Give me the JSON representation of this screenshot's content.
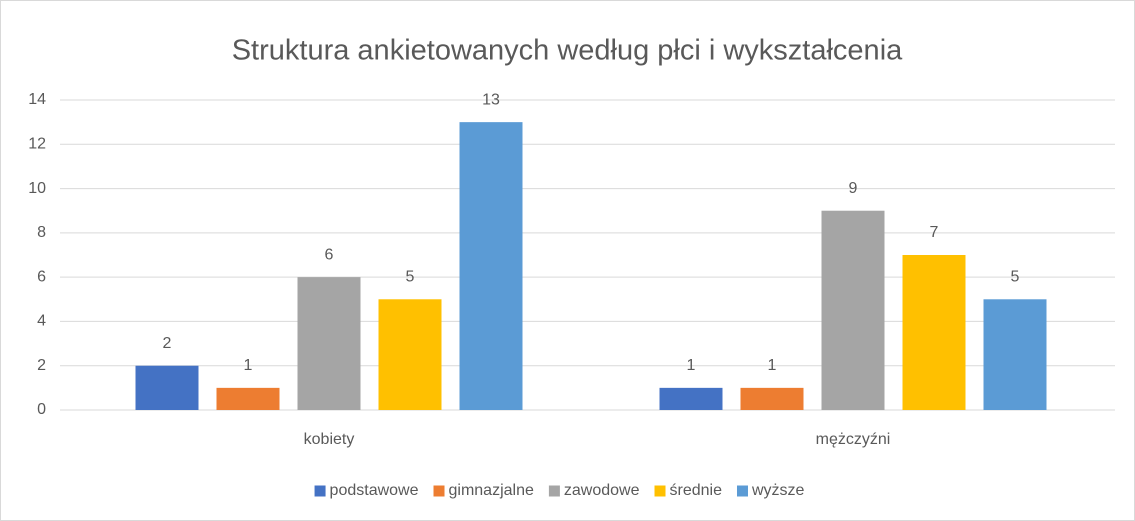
{
  "chart_data": {
    "type": "bar",
    "title": "Struktura ankietowanych według płci i wykształcenia",
    "categories": [
      "kobiety",
      "mężczyźni"
    ],
    "series": [
      {
        "name": "podstawowe",
        "color": "#4472c4",
        "values": [
          2,
          1
        ]
      },
      {
        "name": "gimnazjalne",
        "color": "#ed7d31",
        "values": [
          1,
          1
        ]
      },
      {
        "name": "zawodowe",
        "color": "#a5a5a5",
        "values": [
          6,
          9
        ]
      },
      {
        "name": "średnie",
        "color": "#ffc000",
        "values": [
          5,
          7
        ]
      },
      {
        "name": "wyższe",
        "color": "#5b9bd5",
        "values": [
          13,
          5
        ]
      }
    ],
    "ylim": [
      0,
      14
    ],
    "yticks": [
      0,
      2,
      4,
      6,
      8,
      10,
      12,
      14
    ],
    "grid": true,
    "legend": "bottom"
  }
}
